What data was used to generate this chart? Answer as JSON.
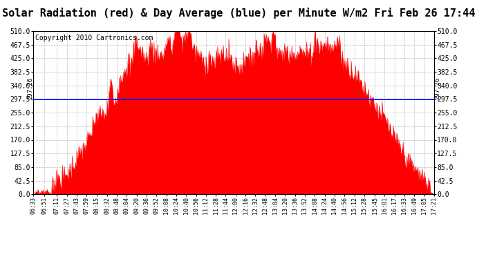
{
  "title": "Solar Radiation (red) & Day Average (blue) per Minute W/m2 Fri Feb 26 17:44",
  "copyright_text": "Copyright 2010 Cartronics.com",
  "y_axis_values": [
    0.0,
    42.5,
    85.0,
    127.5,
    170.0,
    212.5,
    255.0,
    297.5,
    340.0,
    382.5,
    425.0,
    467.5,
    510.0
  ],
  "y_min": 0.0,
  "y_max": 510.0,
  "avg_line_y": 297.26,
  "avg_label": "297.26",
  "fill_color": "#FF0000",
  "line_color": "#0000FF",
  "background_color": "#FFFFFF",
  "grid_color": "#AAAAAA",
  "title_fontsize": 11,
  "copyright_fontsize": 7,
  "x_tick_labels": [
    "06:33",
    "06:51",
    "07:11",
    "07:27",
    "07:43",
    "07:59",
    "08:15",
    "08:32",
    "08:48",
    "09:04",
    "09:20",
    "09:36",
    "09:52",
    "10:08",
    "10:24",
    "10:40",
    "10:56",
    "11:12",
    "11:28",
    "11:44",
    "12:00",
    "12:16",
    "12:32",
    "12:48",
    "13:04",
    "13:20",
    "13:36",
    "13:52",
    "14:08",
    "14:24",
    "14:40",
    "14:56",
    "15:12",
    "15:28",
    "15:45",
    "16:01",
    "16:17",
    "16:33",
    "16:49",
    "17:05",
    "17:21"
  ]
}
